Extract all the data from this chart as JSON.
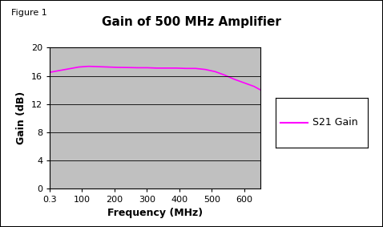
{
  "title": "Gain of 500 MHz Amplifier",
  "figure_label": "Figure 1",
  "xlabel": "Frequency (MHz)",
  "ylabel": "Gain (dB)",
  "xlim": [
    0.3,
    650
  ],
  "ylim": [
    0,
    20
  ],
  "yticks": [
    0,
    4,
    8,
    12,
    16,
    20
  ],
  "xtick_labels": [
    "0.3",
    "100",
    "200",
    "300",
    "400",
    "500",
    "600"
  ],
  "xtick_positions": [
    0.3,
    100,
    200,
    300,
    400,
    500,
    600
  ],
  "line_color": "#FF00FF",
  "line_label": "S21 Gain",
  "plot_bg_color": "#C0C0C0",
  "fig_bg_color": "#FFFFFF",
  "x_data": [
    0.3,
    30,
    60,
    90,
    120,
    150,
    180,
    210,
    240,
    270,
    300,
    330,
    360,
    390,
    420,
    450,
    480,
    510,
    540,
    570,
    600,
    630,
    650
  ],
  "y_data": [
    16.5,
    16.75,
    17.0,
    17.25,
    17.35,
    17.3,
    17.25,
    17.2,
    17.18,
    17.15,
    17.15,
    17.1,
    17.1,
    17.1,
    17.05,
    17.05,
    16.9,
    16.6,
    16.1,
    15.5,
    15.0,
    14.5,
    14.0
  ],
  "title_fontsize": 11,
  "label_fontsize": 9,
  "tick_fontsize": 8,
  "fig_label_fontsize": 8,
  "legend_fontsize": 9
}
